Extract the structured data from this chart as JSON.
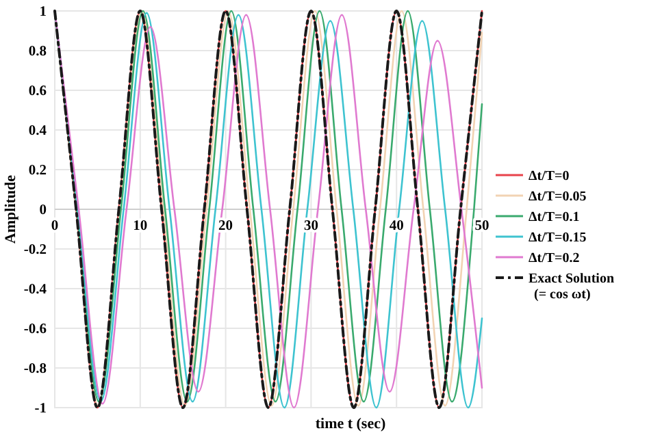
{
  "chart_data": {
    "type": "line",
    "xlabel": "time t (sec)",
    "ylabel": "Amplitude",
    "xlim": [
      0,
      50
    ],
    "ylim": [
      -1,
      1
    ],
    "xticks": [
      0,
      10,
      20,
      30,
      40,
      50
    ],
    "yticks": [
      -1,
      -0.8,
      -0.6,
      -0.4,
      -0.2,
      0,
      0.2,
      0.4,
      0.6,
      0.8,
      1
    ],
    "grid": true,
    "legend": "right",
    "series": [
      {
        "name": "Δt/T=0",
        "color": "#e8434b",
        "x": [
          0,
          2.5,
          5,
          7.5,
          10,
          12.5,
          15,
          17.5,
          20,
          22.5,
          25,
          27.5,
          30,
          32.5,
          35,
          37.5,
          40,
          42.5,
          45,
          47.5,
          50
        ],
        "values": [
          1,
          0,
          -1,
          0,
          1,
          0,
          -1,
          0,
          1,
          0,
          -1,
          0,
          1,
          0,
          -1,
          0,
          1,
          0,
          -1,
          0,
          1
        ]
      },
      {
        "name": "Δt/T=0.05",
        "color": "#f2d3b3",
        "x": [
          0,
          2.54,
          5.08,
          7.61,
          10.15,
          12.69,
          15.23,
          17.76,
          20.3,
          22.84,
          25.38,
          27.91,
          30.45,
          32.99,
          35.53,
          38.06,
          40.6,
          43.14,
          45.68,
          48.21,
          50
        ],
        "values": [
          1,
          0,
          -0.99,
          0,
          1,
          0,
          -0.99,
          0,
          1,
          0,
          -0.99,
          0,
          1,
          0,
          -0.99,
          0,
          1,
          0,
          -0.99,
          0,
          0.89
        ]
      },
      {
        "name": "Δt/T=0.1",
        "color": "#3aaa6e",
        "x": [
          0,
          2.58,
          5.17,
          7.75,
          10.33,
          12.91,
          15.5,
          18.08,
          20.66,
          23.24,
          25.83,
          28.41,
          30.99,
          33.57,
          36.16,
          38.74,
          41.32,
          43.9,
          46.49,
          49.07,
          50
        ],
        "values": [
          1,
          0,
          -0.97,
          0,
          1,
          0,
          -0.97,
          0,
          1,
          0,
          -0.97,
          0,
          1,
          0,
          -0.97,
          0,
          1,
          0,
          -0.97,
          0,
          0.53
        ]
      },
      {
        "name": "Δt/T=0.15",
        "color": "#3ec3d0",
        "x": [
          0,
          2.69,
          5.38,
          8.06,
          10.75,
          13.44,
          16.13,
          18.81,
          21.5,
          24.19,
          26.88,
          29.56,
          32.25,
          34.94,
          37.63,
          40.31,
          43,
          45.69,
          48.38,
          50
        ],
        "values": [
          1,
          0,
          -0.97,
          0,
          0.99,
          0,
          -0.97,
          0,
          0.98,
          0,
          -1,
          0,
          0.95,
          0,
          -1,
          0,
          0.95,
          0,
          -1,
          -0.55
        ]
      },
      {
        "name": "Δt/T=0.2",
        "color": "#e07ad0",
        "x": [
          0,
          2.8,
          5.6,
          8.4,
          11.2,
          14,
          16.8,
          19.6,
          22.4,
          25.2,
          28,
          30.8,
          33.6,
          36.4,
          39.2,
          42,
          44.8,
          47.6,
          50
        ],
        "values": [
          1,
          0,
          -0.98,
          0,
          0.92,
          0,
          -0.92,
          0,
          0.98,
          0,
          -1,
          0,
          0.98,
          0,
          -0.92,
          0,
          0.85,
          0,
          -0.9
        ]
      },
      {
        "name": "Exact Solution\n(= cos ωt)",
        "color": "#1a1a1a",
        "line_style": "dashed",
        "x": [
          0,
          2.5,
          5,
          7.5,
          10,
          12.5,
          15,
          17.5,
          20,
          22.5,
          25,
          27.5,
          30,
          32.5,
          35,
          37.5,
          40,
          42.5,
          45,
          47.5,
          50
        ],
        "values": [
          1,
          0,
          -1,
          0,
          1,
          0,
          -1,
          0,
          1,
          0,
          -1,
          0,
          1,
          0,
          -1,
          0,
          1,
          0,
          -1,
          0,
          1
        ]
      }
    ]
  }
}
